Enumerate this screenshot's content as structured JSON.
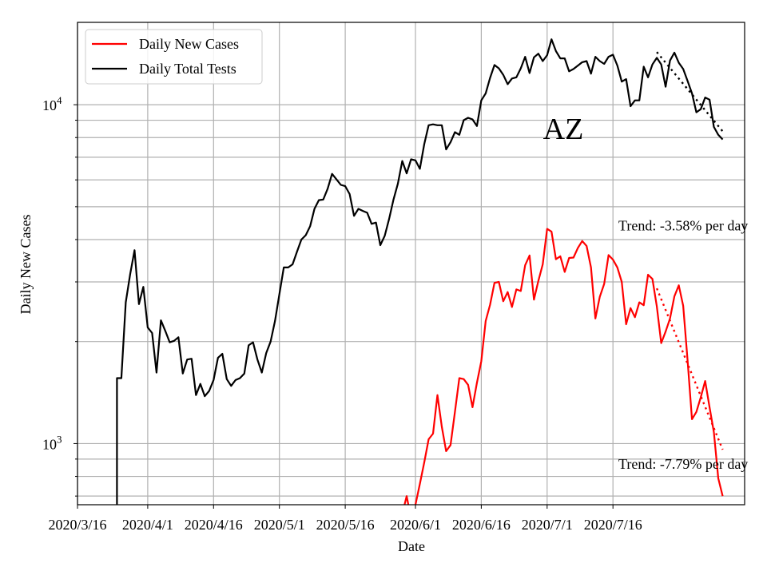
{
  "chart_data": {
    "type": "line",
    "title": "",
    "annotation": "AZ",
    "xlabel": "Date",
    "ylabel": "Daily New Cases",
    "yscale": "log",
    "ylim": [
      660,
      17500
    ],
    "xlim": [
      "2020-03-16",
      "2020-08-15"
    ],
    "grid": true,
    "legend_position": "top-left",
    "x_ticks": [
      "2020/3/16",
      "2020/4/1",
      "2020/4/16",
      "2020/5/1",
      "2020/5/16",
      "2020/6/1",
      "2020/6/16",
      "2020/7/1",
      "2020/7/16"
    ],
    "y_tick_labels": [
      {
        "value": 1000,
        "label": "10",
        "exponent": "3"
      },
      {
        "value": 10000,
        "label": "10",
        "exponent": "4"
      }
    ],
    "trend_labels": [
      {
        "text": "Trend: -3.58% per day",
        "value": 4400
      },
      {
        "text": "Trend: -7.79% per day",
        "value": 870
      }
    ],
    "series": [
      {
        "name": "Daily New Cases",
        "color": "#ff0000",
        "points": [
          [
            "2020-05-29",
            620
          ],
          [
            "2020-05-30",
            700
          ],
          [
            "2020-05-31",
            600
          ],
          [
            "2020-06-01",
            660
          ],
          [
            "2020-06-02",
            760
          ],
          [
            "2020-06-03",
            880
          ],
          [
            "2020-06-04",
            1030
          ],
          [
            "2020-06-05",
            1070
          ],
          [
            "2020-06-06",
            1390
          ],
          [
            "2020-06-07",
            1120
          ],
          [
            "2020-06-08",
            950
          ],
          [
            "2020-06-09",
            990
          ],
          [
            "2020-06-10",
            1240
          ],
          [
            "2020-06-11",
            1560
          ],
          [
            "2020-06-12",
            1550
          ],
          [
            "2020-06-13",
            1490
          ],
          [
            "2020-06-14",
            1280
          ],
          [
            "2020-06-15",
            1510
          ],
          [
            "2020-06-16",
            1750
          ],
          [
            "2020-06-17",
            2300
          ],
          [
            "2020-06-18",
            2570
          ],
          [
            "2020-06-19",
            2980
          ],
          [
            "2020-06-20",
            3000
          ],
          [
            "2020-06-21",
            2630
          ],
          [
            "2020-06-22",
            2800
          ],
          [
            "2020-06-23",
            2530
          ],
          [
            "2020-06-24",
            2850
          ],
          [
            "2020-06-25",
            2820
          ],
          [
            "2020-06-26",
            3360
          ],
          [
            "2020-06-27",
            3590
          ],
          [
            "2020-06-28",
            2660
          ],
          [
            "2020-06-29",
            3020
          ],
          [
            "2020-06-30",
            3380
          ],
          [
            "2020-07-01",
            4300
          ],
          [
            "2020-07-02",
            4220
          ],
          [
            "2020-07-03",
            3500
          ],
          [
            "2020-07-04",
            3570
          ],
          [
            "2020-07-05",
            3210
          ],
          [
            "2020-07-06",
            3530
          ],
          [
            "2020-07-07",
            3540
          ],
          [
            "2020-07-08",
            3780
          ],
          [
            "2020-07-09",
            3960
          ],
          [
            "2020-07-10",
            3830
          ],
          [
            "2020-07-11",
            3310
          ],
          [
            "2020-07-12",
            2340
          ],
          [
            "2020-07-13",
            2710
          ],
          [
            "2020-07-14",
            2960
          ],
          [
            "2020-07-15",
            3600
          ],
          [
            "2020-07-16",
            3490
          ],
          [
            "2020-07-17",
            3310
          ],
          [
            "2020-07-18",
            3000
          ],
          [
            "2020-07-19",
            2250
          ],
          [
            "2020-07-20",
            2510
          ],
          [
            "2020-07-21",
            2360
          ],
          [
            "2020-07-22",
            2610
          ],
          [
            "2020-07-23",
            2560
          ],
          [
            "2020-07-24",
            3150
          ],
          [
            "2020-07-25",
            3060
          ],
          [
            "2020-07-26",
            2540
          ],
          [
            "2020-07-27",
            1980
          ],
          [
            "2020-07-28",
            2140
          ],
          [
            "2020-07-29",
            2340
          ],
          [
            "2020-07-30",
            2720
          ],
          [
            "2020-07-31",
            2930
          ],
          [
            "2020-08-01",
            2550
          ],
          [
            "2020-08-02",
            1760
          ],
          [
            "2020-08-03",
            1180
          ],
          [
            "2020-08-04",
            1240
          ],
          [
            "2020-08-05",
            1370
          ],
          [
            "2020-08-06",
            1530
          ],
          [
            "2020-08-07",
            1280
          ],
          [
            "2020-08-08",
            1080
          ],
          [
            "2020-08-09",
            790
          ],
          [
            "2020-08-10",
            700
          ]
        ]
      },
      {
        "name": "Daily Total Tests",
        "color": "#000000",
        "points": [
          [
            "2020-03-25",
            660
          ],
          [
            "2020-03-25",
            1560
          ],
          [
            "2020-03-26",
            1560
          ],
          [
            "2020-03-27",
            2610
          ],
          [
            "2020-03-28",
            3160
          ],
          [
            "2020-03-29",
            3720
          ],
          [
            "2020-03-30",
            2580
          ],
          [
            "2020-03-31",
            2900
          ],
          [
            "2020-04-01",
            2200
          ],
          [
            "2020-04-02",
            2120
          ],
          [
            "2020-04-03",
            1620
          ],
          [
            "2020-04-04",
            2310
          ],
          [
            "2020-04-05",
            2150
          ],
          [
            "2020-04-06",
            1990
          ],
          [
            "2020-04-07",
            2010
          ],
          [
            "2020-04-08",
            2060
          ],
          [
            "2020-04-09",
            1610
          ],
          [
            "2020-04-10",
            1770
          ],
          [
            "2020-04-11",
            1780
          ],
          [
            "2020-04-12",
            1390
          ],
          [
            "2020-04-13",
            1500
          ],
          [
            "2020-04-14",
            1380
          ],
          [
            "2020-04-15",
            1430
          ],
          [
            "2020-04-16",
            1540
          ],
          [
            "2020-04-17",
            1790
          ],
          [
            "2020-04-18",
            1840
          ],
          [
            "2020-04-19",
            1550
          ],
          [
            "2020-04-20",
            1480
          ],
          [
            "2020-04-21",
            1540
          ],
          [
            "2020-04-22",
            1560
          ],
          [
            "2020-04-23",
            1610
          ],
          [
            "2020-04-24",
            1950
          ],
          [
            "2020-04-25",
            1990
          ],
          [
            "2020-04-26",
            1770
          ],
          [
            "2020-04-27",
            1620
          ],
          [
            "2020-04-28",
            1850
          ],
          [
            "2020-04-29",
            2000
          ],
          [
            "2020-04-30",
            2300
          ],
          [
            "2020-05-01",
            2760
          ],
          [
            "2020-05-02",
            3310
          ],
          [
            "2020-05-03",
            3310
          ],
          [
            "2020-05-04",
            3380
          ],
          [
            "2020-05-05",
            3680
          ],
          [
            "2020-05-06",
            4000
          ],
          [
            "2020-05-07",
            4120
          ],
          [
            "2020-05-08",
            4380
          ],
          [
            "2020-05-09",
            4930
          ],
          [
            "2020-05-10",
            5230
          ],
          [
            "2020-05-11",
            5250
          ],
          [
            "2020-05-12",
            5650
          ],
          [
            "2020-05-13",
            6250
          ],
          [
            "2020-05-14",
            6020
          ],
          [
            "2020-05-15",
            5800
          ],
          [
            "2020-05-16",
            5750
          ],
          [
            "2020-05-17",
            5450
          ],
          [
            "2020-05-18",
            4700
          ],
          [
            "2020-05-19",
            4930
          ],
          [
            "2020-05-20",
            4860
          ],
          [
            "2020-05-21",
            4800
          ],
          [
            "2020-05-22",
            4450
          ],
          [
            "2020-05-23",
            4490
          ],
          [
            "2020-05-24",
            3850
          ],
          [
            "2020-05-25",
            4100
          ],
          [
            "2020-05-26",
            4600
          ],
          [
            "2020-05-27",
            5250
          ],
          [
            "2020-05-28",
            5850
          ],
          [
            "2020-05-29",
            6820
          ],
          [
            "2020-05-30",
            6270
          ],
          [
            "2020-05-31",
            6900
          ],
          [
            "2020-06-01",
            6850
          ],
          [
            "2020-06-02",
            6470
          ],
          [
            "2020-06-03",
            7650
          ],
          [
            "2020-06-04",
            8700
          ],
          [
            "2020-06-05",
            8750
          ],
          [
            "2020-06-06",
            8700
          ],
          [
            "2020-06-07",
            8700
          ],
          [
            "2020-06-08",
            7380
          ],
          [
            "2020-06-09",
            7750
          ],
          [
            "2020-06-10",
            8300
          ],
          [
            "2020-06-11",
            8150
          ],
          [
            "2020-06-12",
            9000
          ],
          [
            "2020-06-13",
            9150
          ],
          [
            "2020-06-14",
            9050
          ],
          [
            "2020-06-15",
            8650
          ],
          [
            "2020-06-16",
            10300
          ],
          [
            "2020-06-17",
            10800
          ],
          [
            "2020-06-18",
            12000
          ],
          [
            "2020-06-19",
            13100
          ],
          [
            "2020-06-20",
            12800
          ],
          [
            "2020-06-21",
            12250
          ],
          [
            "2020-06-22",
            11500
          ],
          [
            "2020-06-23",
            11950
          ],
          [
            "2020-06-24",
            12050
          ],
          [
            "2020-06-25",
            12800
          ],
          [
            "2020-06-26",
            13850
          ],
          [
            "2020-06-27",
            12400
          ],
          [
            "2020-06-28",
            13800
          ],
          [
            "2020-06-29",
            14150
          ],
          [
            "2020-06-30",
            13450
          ],
          [
            "2020-07-01",
            14000
          ],
          [
            "2020-07-02",
            15600
          ],
          [
            "2020-07-03",
            14400
          ],
          [
            "2020-07-04",
            13700
          ],
          [
            "2020-07-05",
            13700
          ],
          [
            "2020-07-06",
            12550
          ],
          [
            "2020-07-07",
            12750
          ],
          [
            "2020-07-08",
            13050
          ],
          [
            "2020-07-09",
            13350
          ],
          [
            "2020-07-10",
            13450
          ],
          [
            "2020-07-11",
            12350
          ],
          [
            "2020-07-12",
            13850
          ],
          [
            "2020-07-13",
            13450
          ],
          [
            "2020-07-14",
            13200
          ],
          [
            "2020-07-15",
            13850
          ],
          [
            "2020-07-16",
            14050
          ],
          [
            "2020-07-17",
            13050
          ],
          [
            "2020-07-18",
            11700
          ],
          [
            "2020-07-19",
            11900
          ],
          [
            "2020-07-20",
            9900
          ],
          [
            "2020-07-21",
            10300
          ],
          [
            "2020-07-22",
            10300
          ],
          [
            "2020-07-23",
            12950
          ],
          [
            "2020-07-24",
            12050
          ],
          [
            "2020-07-25",
            13150
          ],
          [
            "2020-07-26",
            13750
          ],
          [
            "2020-07-27",
            13150
          ],
          [
            "2020-07-28",
            11300
          ],
          [
            "2020-07-29",
            13500
          ],
          [
            "2020-07-30",
            14250
          ],
          [
            "2020-07-31",
            13300
          ],
          [
            "2020-08-01",
            12750
          ],
          [
            "2020-08-02",
            11750
          ],
          [
            "2020-08-03",
            10800
          ],
          [
            "2020-08-04",
            9500
          ],
          [
            "2020-08-05",
            9700
          ],
          [
            "2020-08-06",
            10500
          ],
          [
            "2020-08-07",
            10350
          ],
          [
            "2020-08-08",
            8600
          ],
          [
            "2020-08-09",
            8150
          ],
          [
            "2020-08-10",
            7900
          ]
        ]
      }
    ],
    "trend_lines": [
      {
        "series": "Daily Total Tests",
        "color": "#000000",
        "style": "dotted",
        "points": [
          [
            "2020-07-26",
            14300
          ],
          [
            "2020-08-10",
            8350
          ]
        ]
      },
      {
        "series": "Daily New Cases",
        "color": "#ff0000",
        "style": "dotted",
        "points": [
          [
            "2020-07-26",
            2870
          ],
          [
            "2020-08-10",
            960
          ]
        ]
      }
    ]
  }
}
